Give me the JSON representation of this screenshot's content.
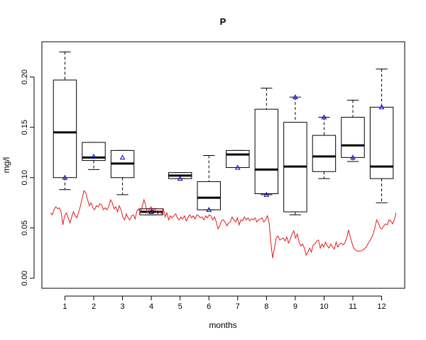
{
  "chart_data": {
    "type": "box",
    "title": "P",
    "xlabel": "months",
    "ylabel": "mg/l",
    "ylim": [
      -0.01,
      0.235
    ],
    "yticks": [
      "0.00",
      "0.05",
      "0.10",
      "0.15",
      "0.20"
    ],
    "categories": [
      "1",
      "2",
      "3",
      "4",
      "5",
      "6",
      "7",
      "8",
      "9",
      "10",
      "11",
      "12"
    ],
    "boxes": [
      {
        "whisker_low": 0.088,
        "q1": 0.1,
        "median": 0.145,
        "q3": 0.197,
        "whisker_high": 0.225
      },
      {
        "whisker_low": 0.108,
        "q1": 0.117,
        "median": 0.12,
        "q3": 0.135,
        "whisker_high": 0.135
      },
      {
        "whisker_low": 0.083,
        "q1": 0.1,
        "median": 0.114,
        "q3": 0.127,
        "whisker_high": 0.127
      },
      {
        "whisker_low": 0.063,
        "q1": 0.063,
        "median": 0.066,
        "q3": 0.069,
        "whisker_high": 0.069
      },
      {
        "whisker_low": 0.099,
        "q1": 0.099,
        "median": 0.102,
        "q3": 0.105,
        "whisker_high": 0.105
      },
      {
        "whisker_low": 0.068,
        "q1": 0.068,
        "median": 0.08,
        "q3": 0.096,
        "whisker_high": 0.122
      },
      {
        "whisker_low": 0.11,
        "q1": 0.11,
        "median": 0.123,
        "q3": 0.127,
        "whisker_high": 0.127
      },
      {
        "whisker_low": 0.083,
        "q1": 0.084,
        "median": 0.108,
        "q3": 0.168,
        "whisker_high": 0.189
      },
      {
        "whisker_low": 0.063,
        "q1": 0.066,
        "median": 0.111,
        "q3": 0.155,
        "whisker_high": 0.18
      },
      {
        "whisker_low": 0.099,
        "q1": 0.106,
        "median": 0.121,
        "q3": 0.142,
        "whisker_high": 0.16
      },
      {
        "whisker_low": 0.116,
        "q1": 0.12,
        "median": 0.132,
        "q3": 0.16,
        "whisker_high": 0.177
      },
      {
        "whisker_low": 0.075,
        "q1": 0.099,
        "median": 0.111,
        "q3": 0.17,
        "whisker_high": 0.208
      }
    ],
    "triangle_markers": [
      0.1,
      0.121,
      0.12,
      0.066,
      0.099,
      0.068,
      0.11,
      0.083,
      0.18,
      0.16,
      0.12,
      0.17
    ],
    "line_series": {
      "color": "#e31a1c",
      "x_start": 0.5,
      "x_end": 12.5,
      "values": [
        0.065,
        0.063,
        0.068,
        0.071,
        0.069,
        0.07,
        0.066,
        0.053,
        0.062,
        0.065,
        0.06,
        0.055,
        0.061,
        0.066,
        0.062,
        0.06,
        0.066,
        0.072,
        0.08,
        0.087,
        0.085,
        0.078,
        0.072,
        0.075,
        0.07,
        0.068,
        0.072,
        0.071,
        0.074,
        0.073,
        0.068,
        0.07,
        0.068,
        0.071,
        0.078,
        0.075,
        0.069,
        0.071,
        0.066,
        0.072,
        0.068,
        0.061,
        0.058,
        0.064,
        0.06,
        0.058,
        0.062,
        0.063,
        0.059,
        0.067,
        0.069,
        0.065,
        0.071,
        0.078,
        0.072,
        0.065,
        0.068,
        0.071,
        0.067,
        0.069,
        0.066,
        0.064,
        0.067,
        0.064,
        0.069,
        0.061,
        0.065,
        0.058,
        0.062,
        0.06,
        0.062,
        0.064,
        0.06,
        0.058,
        0.061,
        0.059,
        0.062,
        0.057,
        0.06,
        0.063,
        0.06,
        0.062,
        0.059,
        0.063,
        0.062,
        0.06,
        0.061,
        0.058,
        0.062,
        0.06,
        0.063,
        0.062,
        0.058,
        0.061,
        0.056,
        0.049,
        0.052,
        0.057,
        0.058,
        0.056,
        0.052,
        0.055,
        0.056,
        0.061,
        0.058,
        0.056,
        0.06,
        0.053,
        0.058,
        0.057,
        0.061,
        0.058,
        0.06,
        0.057,
        0.059,
        0.058,
        0.06,
        0.056,
        0.058,
        0.059,
        0.06,
        0.056,
        0.058,
        0.062,
        0.055,
        0.035,
        0.02,
        0.03,
        0.04,
        0.042,
        0.038,
        0.039,
        0.04,
        0.037,
        0.041,
        0.035,
        0.039,
        0.044,
        0.047,
        0.04,
        0.044,
        0.036,
        0.032,
        0.034,
        0.03,
        0.023,
        0.026,
        0.03,
        0.026,
        0.033,
        0.034,
        0.037,
        0.038,
        0.03,
        0.034,
        0.031,
        0.036,
        0.032,
        0.03,
        0.034,
        0.031,
        0.029,
        0.036,
        0.031,
        0.034,
        0.035,
        0.033,
        0.035,
        0.04,
        0.048,
        0.041,
        0.035,
        0.03,
        0.028,
        0.027,
        0.027,
        0.027,
        0.028,
        0.029,
        0.031,
        0.034,
        0.037,
        0.04,
        0.044,
        0.05,
        0.058,
        0.055,
        0.05,
        0.049,
        0.052,
        0.054,
        0.053,
        0.058,
        0.057,
        0.054,
        0.058,
        0.065
      ]
    },
    "colors": {
      "box_stroke": "#000000",
      "marker": "#0000cc",
      "line": "#e31a1c"
    }
  }
}
